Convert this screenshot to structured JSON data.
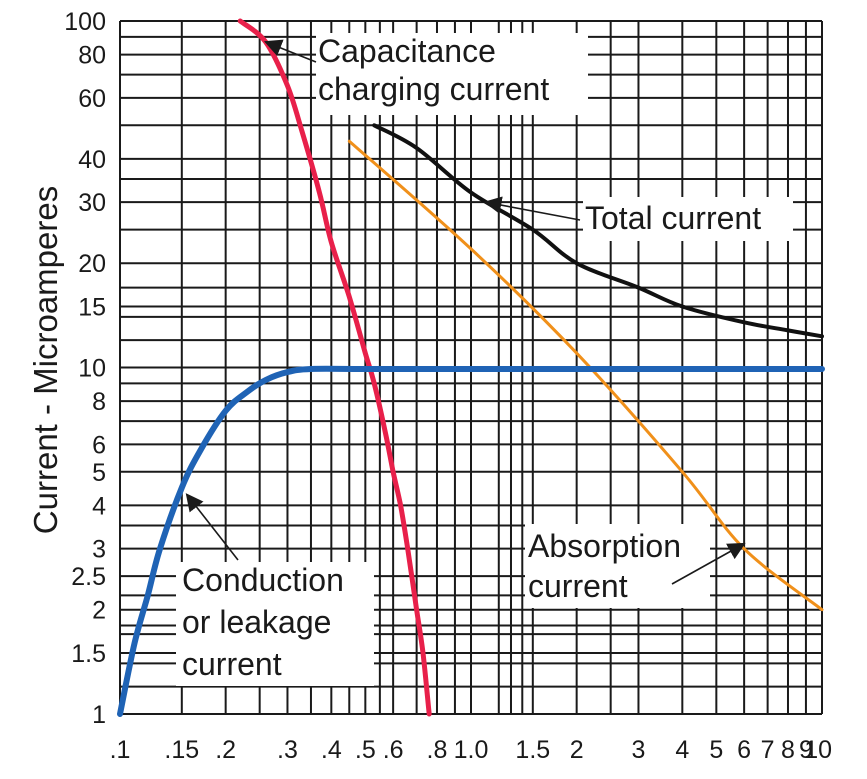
{
  "chart_data": {
    "type": "line",
    "xscale": "log",
    "yscale": "log",
    "xlim": [
      0.1,
      10
    ],
    "ylim": [
      1,
      100
    ],
    "grid": true,
    "xlabel": "",
    "ylabel": "Current - Microamperes",
    "xticks": [
      {
        "value": 0.1,
        "label": ".1"
      },
      {
        "value": 0.15,
        "label": ".15"
      },
      {
        "value": 0.2,
        "label": ".2"
      },
      {
        "value": 0.3,
        "label": ".3"
      },
      {
        "value": 0.4,
        "label": ".4"
      },
      {
        "value": 0.5,
        "label": ".5"
      },
      {
        "value": 0.6,
        "label": ".6"
      },
      {
        "value": 0.8,
        "label": ".8"
      },
      {
        "value": 1.0,
        "label": "1.0"
      },
      {
        "value": 1.5,
        "label": "1.5"
      },
      {
        "value": 2,
        "label": "2"
      },
      {
        "value": 3,
        "label": "3"
      },
      {
        "value": 4,
        "label": "4"
      },
      {
        "value": 5,
        "label": "5"
      },
      {
        "value": 6,
        "label": "6"
      },
      {
        "value": 7,
        "label": "7"
      },
      {
        "value": 8,
        "label": "8"
      },
      {
        "value": 9,
        "label": "9"
      },
      {
        "value": 10,
        "label": "10"
      }
    ],
    "yticks": [
      {
        "value": 1,
        "label": "1"
      },
      {
        "value": 1.5,
        "label": "1.5"
      },
      {
        "value": 2,
        "label": "2"
      },
      {
        "value": 2.5,
        "label": "2.5"
      },
      {
        "value": 3,
        "label": "3"
      },
      {
        "value": 4,
        "label": "4"
      },
      {
        "value": 5,
        "label": "5"
      },
      {
        "value": 6,
        "label": "6"
      },
      {
        "value": 8,
        "label": "8"
      },
      {
        "value": 10,
        "label": "10"
      },
      {
        "value": 15,
        "label": "15"
      },
      {
        "value": 20,
        "label": "20"
      },
      {
        "value": 30,
        "label": "30"
      },
      {
        "value": 40,
        "label": "40"
      },
      {
        "value": 60,
        "label": "60"
      },
      {
        "value": 80,
        "label": "80"
      },
      {
        "value": 100,
        "label": "100"
      }
    ],
    "extra_xgrid": [
      0.25,
      0.35,
      0.45,
      0.55,
      0.7,
      0.9,
      1.2,
      1.3,
      1.4,
      2.5
    ],
    "extra_ygrid": [
      1.2,
      1.4,
      1.7,
      1.8,
      2.2,
      3.5,
      7,
      9,
      12,
      14,
      17,
      25,
      35,
      50,
      70,
      90
    ],
    "series": [
      {
        "name": "Capacitance charging current",
        "color": "#e8204a",
        "points": [
          [
            0.22,
            100
          ],
          [
            0.26,
            87
          ],
          [
            0.3,
            65
          ],
          [
            0.33,
            48
          ],
          [
            0.37,
            32
          ],
          [
            0.4,
            23
          ],
          [
            0.45,
            16
          ],
          [
            0.5,
            11
          ],
          [
            0.53,
            9
          ],
          [
            0.57,
            6.5
          ],
          [
            0.6,
            5
          ],
          [
            0.63,
            4
          ],
          [
            0.66,
            3
          ],
          [
            0.7,
            2
          ],
          [
            0.73,
            1.5
          ],
          [
            0.76,
            1
          ]
        ]
      },
      {
        "name": "Total current",
        "color": "#111111",
        "points": [
          [
            0.53,
            50
          ],
          [
            0.7,
            43
          ],
          [
            1.0,
            32
          ],
          [
            1.5,
            25
          ],
          [
            2,
            20
          ],
          [
            3,
            17
          ],
          [
            4,
            15
          ],
          [
            6,
            13.5
          ],
          [
            8,
            12.8
          ],
          [
            10,
            12.3
          ]
        ]
      },
      {
        "name": "Absorption current",
        "color": "#f0901a",
        "points": [
          [
            0.45,
            45
          ],
          [
            1.0,
            22
          ],
          [
            2,
            11
          ],
          [
            4,
            5
          ],
          [
            6,
            3
          ],
          [
            10,
            2
          ]
        ]
      },
      {
        "name": "Conduction or leakage current",
        "color": "#1f63b5",
        "points": [
          [
            0.1,
            1
          ],
          [
            0.11,
            1.6
          ],
          [
            0.12,
            2.2
          ],
          [
            0.13,
            3
          ],
          [
            0.15,
            4.5
          ],
          [
            0.17,
            5.8
          ],
          [
            0.2,
            7.5
          ],
          [
            0.23,
            8.5
          ],
          [
            0.26,
            9.2
          ],
          [
            0.3,
            9.7
          ],
          [
            0.35,
            9.9
          ],
          [
            0.5,
            9.9
          ],
          [
            1,
            9.9
          ],
          [
            10,
            9.9
          ]
        ]
      }
    ],
    "annotations": [
      {
        "lines": [
          "Capacitance",
          "charging current"
        ],
        "arrow_to": [
          0.26,
          87
        ]
      },
      {
        "lines": [
          "Total current"
        ],
        "arrow_to": [
          1.1,
          30
        ]
      },
      {
        "lines": [
          "Absorption",
          "current"
        ],
        "arrow_to": [
          6,
          3.1
        ]
      },
      {
        "lines": [
          "Conduction",
          "or leakage",
          "current"
        ],
        "arrow_to": [
          0.155,
          4.3
        ]
      }
    ]
  }
}
